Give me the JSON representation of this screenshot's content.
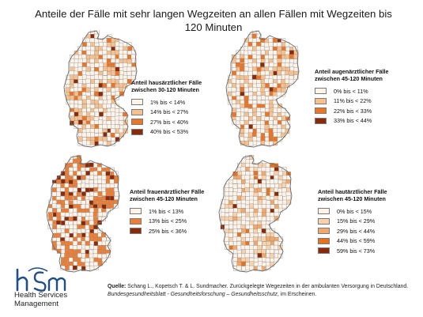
{
  "title_line1": "Anteile der Fälle mit sehr langen Wegzeiten an allen Fällen mit Wegzeiten bis",
  "title_line2": "120 Minuten",
  "maps": [
    {
      "id": "hausarzt",
      "legend_title_line1": "Anteil hausärztlicher Fälle",
      "legend_title_line2": "zwischen 30-120 Minuten",
      "classes": [
        {
          "label": "1% bis < 14%",
          "color": "#fdf3e8"
        },
        {
          "label": "14% bis < 27%",
          "color": "#f7c18f"
        },
        {
          "label": "27% bis < 40%",
          "color": "#ec7424"
        },
        {
          "label": "40% bis < 53%",
          "color": "#8a2a09"
        }
      ]
    },
    {
      "id": "augenarzt",
      "legend_title_line1": "Anteil augenärztlicher Fälle",
      "legend_title_line2": "zwischen 45-120 Minuten",
      "classes": [
        {
          "label": "0% bis < 11%",
          "color": "#fdf3e8"
        },
        {
          "label": "11% bis < 22%",
          "color": "#f7c18f"
        },
        {
          "label": "22% bis < 33%",
          "color": "#ec7424"
        },
        {
          "label": "33% bis < 44%",
          "color": "#8a2a09"
        }
      ]
    },
    {
      "id": "frauenarzt",
      "legend_title_line1": "Anteil frauenärztlicher Fälle",
      "legend_title_line2": "zwischen 45-120 Minuten",
      "classes": [
        {
          "label": "1% bis < 13%",
          "color": "#fdf3e8"
        },
        {
          "label": "13% bis < 25%",
          "color": "#ec7e35"
        },
        {
          "label": "25% bis < 36%",
          "color": "#8a2a09"
        }
      ]
    },
    {
      "id": "hautarzt",
      "legend_title_line1": "Anteil hautärztlicher Fälle",
      "legend_title_line2": "zwischen 45-120 Minuten",
      "classes": [
        {
          "label": "0% bis < 15%",
          "color": "#fdf3e8"
        },
        {
          "label": "15% bis < 29%",
          "color": "#f9d2ab"
        },
        {
          "label": "29% bis < 44%",
          "color": "#f3a768"
        },
        {
          "label": "44% bis < 59%",
          "color": "#e4731f"
        },
        {
          "label": "59% bis < 73%",
          "color": "#8a2a09"
        }
      ]
    }
  ],
  "logo": {
    "line1": "Health Services",
    "line2": "Management",
    "mark_color": "#1f4f86"
  },
  "source": {
    "label": "Quelle:",
    "text": " Schang L., Kopetsch T. & L. Sundmacher. Zurückgelegte Wegezeiten in der ambulanten Versorgung in Deutschland.",
    "italic": "Bundesgesundheitsblatt - Gesundheitsforschung – Gesundheitsschutz",
    "tail": ", im Erscheinen."
  }
}
